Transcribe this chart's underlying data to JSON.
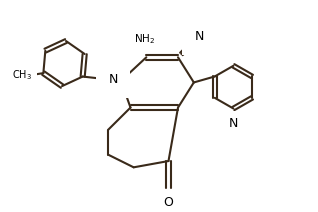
{
  "background_color": "#ffffff",
  "line_color": "#3a2a1a",
  "line_width": 1.5,
  "figsize": [
    3.18,
    2.12
  ],
  "dpi": 100,
  "xlim": [
    0,
    10
  ],
  "ylim": [
    0,
    6.6
  ]
}
